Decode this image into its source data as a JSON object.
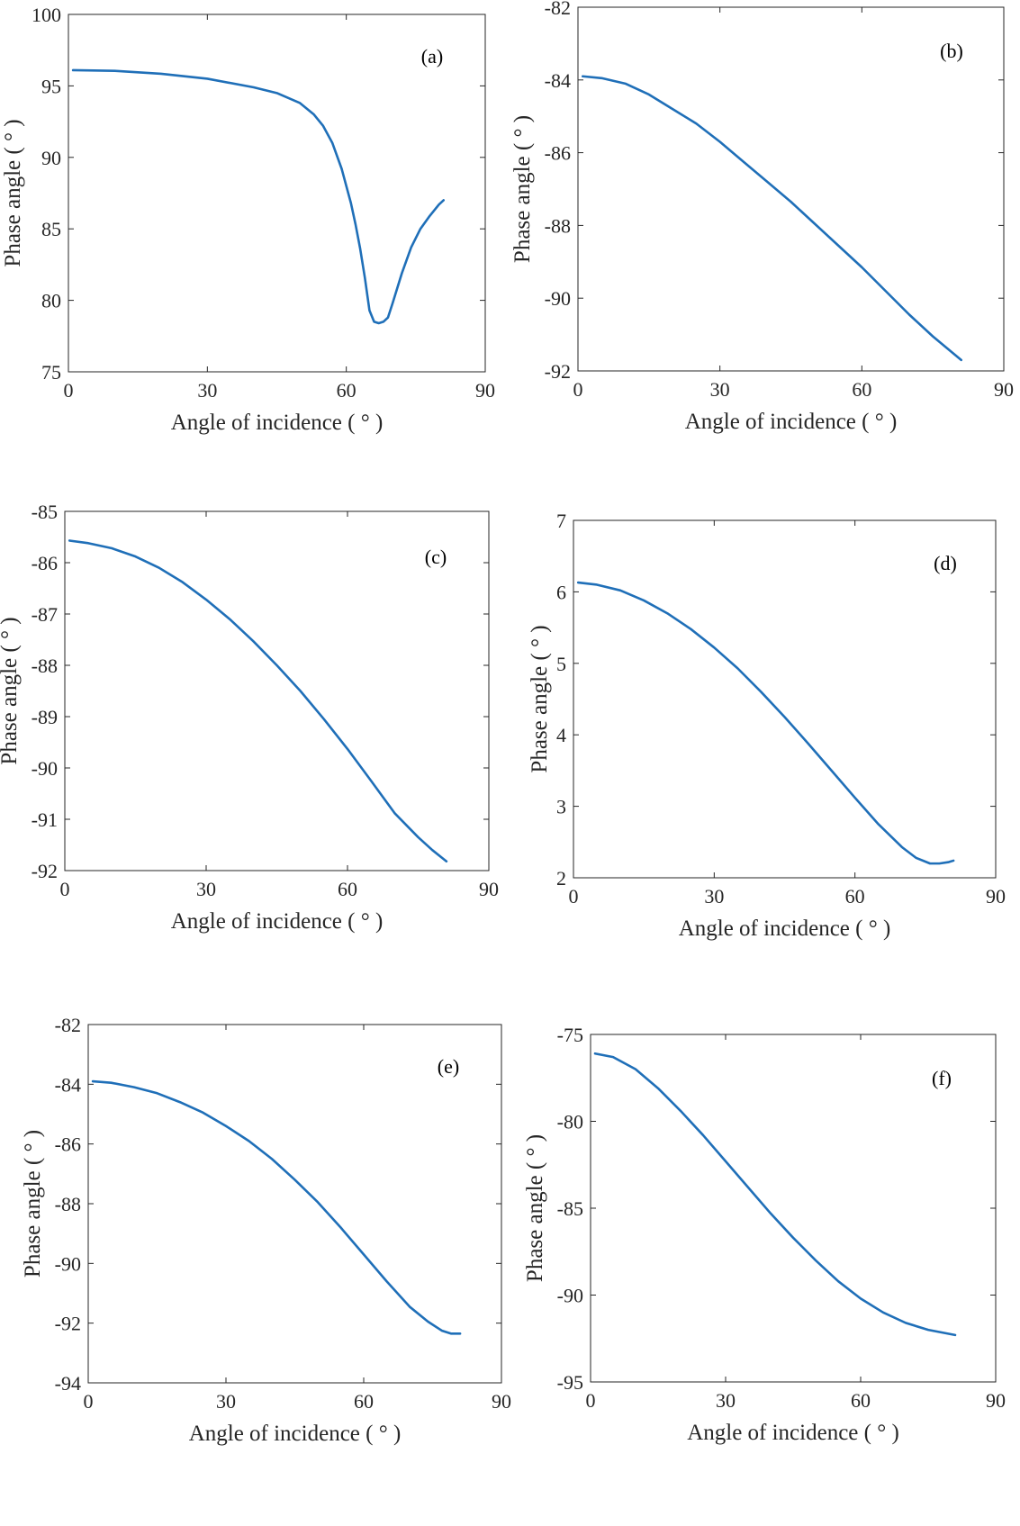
{
  "figure": {
    "line_color": "#1f6fb8",
    "axis_color": "#262626"
  },
  "chart_data": [
    {
      "type": "line",
      "panel": "(a)",
      "xlabel": "Angle of incidence ( ° )",
      "ylabel": "Phase angle ( ° )",
      "xlim": [
        0,
        90
      ],
      "ylim": [
        75,
        100
      ],
      "xticks": [
        "0",
        "30",
        "60",
        "90"
      ],
      "yticks": [
        "75",
        "80",
        "85",
        "90",
        "95",
        "100"
      ],
      "grid": false,
      "series": [
        {
          "x": [
            1,
            10,
            20,
            30,
            40,
            45,
            50,
            53,
            55,
            57,
            59,
            61,
            62,
            63,
            64,
            65,
            66,
            67,
            68,
            69,
            70,
            72,
            74,
            76,
            78,
            80,
            81
          ],
          "y": [
            96.1,
            96.05,
            95.85,
            95.5,
            94.9,
            94.5,
            93.8,
            93.0,
            92.2,
            91.0,
            89.2,
            86.8,
            85.3,
            83.6,
            81.6,
            79.3,
            78.5,
            78.4,
            78.5,
            78.8,
            79.8,
            81.9,
            83.7,
            85.0,
            85.9,
            86.7,
            87.0
          ]
        }
      ]
    },
    {
      "type": "line",
      "panel": "(b)",
      "xlabel": "Angle of incidence ( ° )",
      "ylabel": "Phase angle ( ° )",
      "xlim": [
        0,
        90
      ],
      "ylim": [
        -92,
        -82
      ],
      "xticks": [
        "0",
        "30",
        "60",
        "90"
      ],
      "yticks": [
        "-92",
        "-90",
        "-88",
        "-86",
        "-84",
        "-82"
      ],
      "grid": false,
      "series": [
        {
          "x": [
            1,
            5,
            10,
            15,
            20,
            25,
            30,
            35,
            40,
            45,
            50,
            55,
            60,
            65,
            70,
            75,
            81
          ],
          "y": [
            -83.9,
            -83.95,
            -84.1,
            -84.4,
            -84.8,
            -85.2,
            -85.7,
            -86.25,
            -86.8,
            -87.35,
            -87.95,
            -88.55,
            -89.15,
            -89.8,
            -90.45,
            -91.05,
            -91.7
          ]
        }
      ]
    },
    {
      "type": "line",
      "panel": "(c)",
      "xlabel": "Angle of incidence ( ° )",
      "ylabel": "Phase angle ( ° )",
      "xlim": [
        0,
        90
      ],
      "ylim": [
        -92,
        -85
      ],
      "xticks": [
        "0",
        "30",
        "60",
        "90"
      ],
      "yticks": [
        "-92",
        "-91",
        "-90",
        "-89",
        "-88",
        "-87",
        "-86",
        "-85"
      ],
      "grid": false,
      "series": [
        {
          "x": [
            1,
            5,
            10,
            15,
            20,
            25,
            30,
            35,
            40,
            45,
            50,
            55,
            60,
            65,
            70,
            75,
            78,
            81
          ],
          "y": [
            -85.57,
            -85.62,
            -85.72,
            -85.88,
            -86.1,
            -86.38,
            -86.72,
            -87.1,
            -87.53,
            -88.0,
            -88.5,
            -89.05,
            -89.63,
            -90.25,
            -90.88,
            -91.35,
            -91.6,
            -91.82
          ]
        }
      ]
    },
    {
      "type": "line",
      "panel": "(d)",
      "xlabel": "Angle of incidence ( ° )",
      "ylabel": "Phase angle ( ° )",
      "xlim": [
        0,
        90
      ],
      "ylim": [
        2,
        7
      ],
      "xticks": [
        "0",
        "30",
        "60",
        "90"
      ],
      "yticks": [
        "2",
        "3",
        "4",
        "5",
        "6",
        "7"
      ],
      "grid": false,
      "series": [
        {
          "x": [
            1,
            5,
            10,
            15,
            20,
            25,
            30,
            35,
            40,
            45,
            50,
            55,
            60,
            65,
            70,
            73,
            76,
            78,
            80,
            81
          ],
          "y": [
            6.13,
            6.1,
            6.02,
            5.88,
            5.7,
            5.48,
            5.22,
            4.93,
            4.6,
            4.25,
            3.88,
            3.5,
            3.12,
            2.75,
            2.43,
            2.28,
            2.2,
            2.2,
            2.22,
            2.24
          ]
        }
      ]
    },
    {
      "type": "line",
      "panel": "(e)",
      "xlabel": "Angle of incidence ( ° )",
      "ylabel": "Phase angle ( ° )",
      "xlim": [
        0,
        90
      ],
      "ylim": [
        -94,
        -82
      ],
      "xticks": [
        "0",
        "30",
        "60",
        "90"
      ],
      "yticks": [
        "-94",
        "-92",
        "-90",
        "-88",
        "-86",
        "-84",
        "-82"
      ],
      "grid": false,
      "series": [
        {
          "x": [
            1,
            5,
            10,
            15,
            20,
            25,
            30,
            35,
            40,
            45,
            50,
            55,
            60,
            65,
            70,
            74,
            77,
            79,
            81
          ],
          "y": [
            -83.9,
            -83.95,
            -84.1,
            -84.3,
            -84.6,
            -84.95,
            -85.4,
            -85.9,
            -86.5,
            -87.2,
            -87.95,
            -88.8,
            -89.7,
            -90.6,
            -91.45,
            -91.95,
            -92.25,
            -92.35,
            -92.35
          ]
        }
      ]
    },
    {
      "type": "line",
      "panel": "(f)",
      "xlabel": "Angle of incidence ( ° )",
      "ylabel": "Phase angle ( ° )",
      "xlim": [
        0,
        90
      ],
      "ylim": [
        -95,
        -75
      ],
      "xticks": [
        "0",
        "30",
        "60",
        "90"
      ],
      "yticks": [
        "-95",
        "-90",
        "-85",
        "-80",
        "-75"
      ],
      "grid": false,
      "series": [
        {
          "x": [
            1,
            5,
            10,
            15,
            20,
            25,
            30,
            35,
            40,
            45,
            50,
            55,
            60,
            65,
            70,
            75,
            81
          ],
          "y": [
            -76.1,
            -76.3,
            -77.0,
            -78.1,
            -79.4,
            -80.8,
            -82.3,
            -83.8,
            -85.3,
            -86.7,
            -88.0,
            -89.2,
            -90.2,
            -91.0,
            -91.6,
            -92.0,
            -92.3
          ]
        }
      ]
    }
  ]
}
